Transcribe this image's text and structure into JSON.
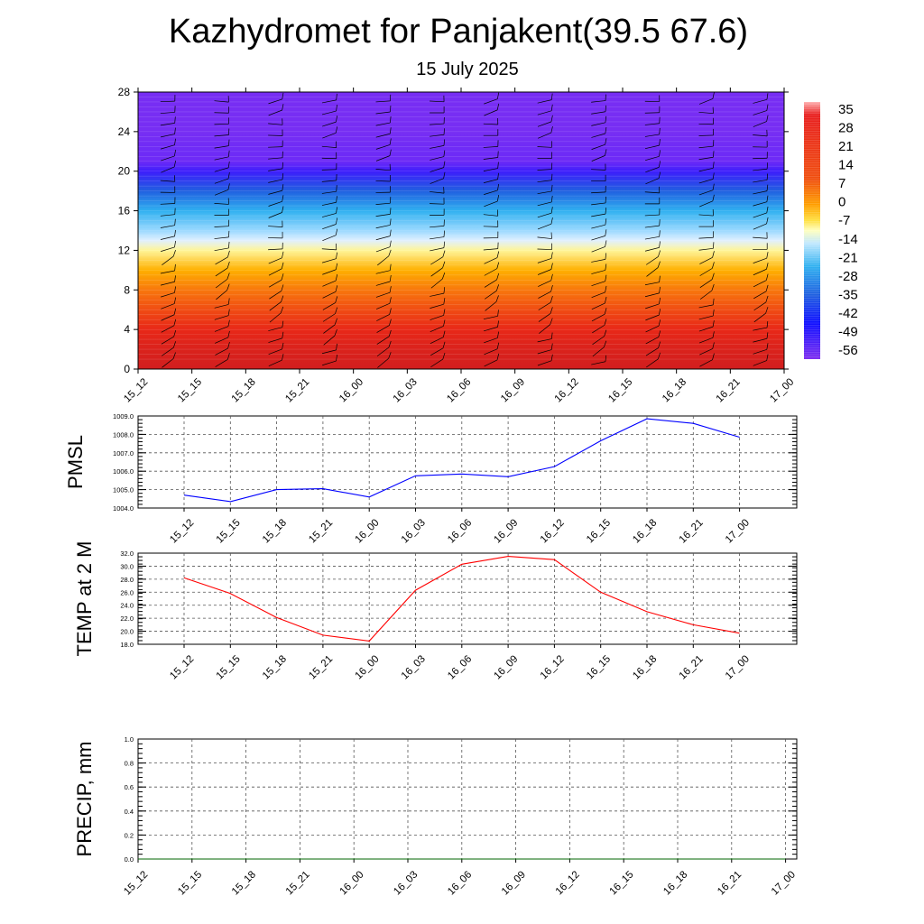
{
  "title": "Kazhydromet for Panjakent(39.5 67.6)",
  "subtitle": "15 July 2025",
  "colors": {
    "pmsl_line": "#0000ff",
    "temp_line": "#ff0000",
    "precip_line": "#006400"
  },
  "chart_data": [
    {
      "type": "heatmap",
      "xlabels": [
        "15_12",
        "15_15",
        "15_18",
        "15_21",
        "16_00",
        "16_03",
        "16_06",
        "16_09",
        "16_12",
        "16_15",
        "16_18",
        "16_21",
        "17_00"
      ],
      "ylim": [
        0,
        28
      ],
      "yticks": [
        0,
        4,
        8,
        12,
        16,
        20,
        24,
        28
      ],
      "colorbar": {
        "labels": [
          "35",
          "28",
          "21",
          "14",
          "7",
          "0",
          "-7",
          "-14",
          "-21",
          "-28",
          "-35",
          "-42",
          "-49",
          "-56"
        ]
      },
      "temperature_profile": {
        "heights": [
          0,
          2,
          4,
          6,
          8,
          10,
          12,
          13,
          14,
          16,
          18,
          20,
          21,
          22,
          24,
          28
        ],
        "values": [
          30,
          27,
          22,
          16,
          10,
          4,
          -6,
          -13,
          -18,
          -28,
          -38,
          -52,
          -58,
          -58,
          -60,
          -60
        ]
      },
      "annotation": "wind barbs"
    },
    {
      "type": "line",
      "ylabel": "PMSL",
      "x": [
        "15_12",
        "15_15",
        "15_18",
        "15_21",
        "16_00",
        "16_03",
        "16_06",
        "16_09",
        "16_12",
        "16_15",
        "16_18",
        "16_21",
        "17_00"
      ],
      "ylim": [
        1004.0,
        1009.0
      ],
      "yticks": [
        "1004.0",
        "1005.0",
        "1006.0",
        "1007.0",
        "1008.0",
        "1009.0"
      ],
      "series": [
        {
          "values": [
            1004.7,
            1004.35,
            1005.0,
            1005.05,
            1004.6,
            1005.75,
            1005.85,
            1005.7,
            1006.25,
            1007.65,
            1008.85,
            1008.6,
            1007.85
          ]
        }
      ]
    },
    {
      "type": "line",
      "ylabel": "TEMP at 2 M",
      "x": [
        "15_12",
        "15_15",
        "15_18",
        "15_21",
        "16_00",
        "16_03",
        "16_06",
        "16_09",
        "16_12",
        "16_15",
        "16_18",
        "16_21",
        "17_00"
      ],
      "ylim": [
        18.0,
        32.0
      ],
      "yticks": [
        "18.0",
        "20.0",
        "22.0",
        "24.0",
        "26.0",
        "28.0",
        "30.0",
        "32.0"
      ],
      "series": [
        {
          "values": [
            28.2,
            25.8,
            22.1,
            19.4,
            18.5,
            26.3,
            30.3,
            31.5,
            31.0,
            26.0,
            23.0,
            21.0,
            19.7
          ]
        }
      ]
    },
    {
      "type": "line",
      "ylabel": "PRECIP, mm",
      "x": [
        "15_12",
        "15_15",
        "15_18",
        "15_21",
        "16_00",
        "16_03",
        "16_06",
        "16_09",
        "16_12",
        "16_15",
        "16_18",
        "16_21",
        "17_00"
      ],
      "ylim": [
        0.0,
        1.0
      ],
      "yticks": [
        "0.0",
        "0.2",
        "0.4",
        "0.6",
        "0.8",
        "1.0"
      ],
      "series": [
        {
          "values": [
            0,
            0,
            0,
            0,
            0,
            0,
            0,
            0,
            0,
            0,
            0,
            0,
            0
          ]
        }
      ]
    }
  ]
}
